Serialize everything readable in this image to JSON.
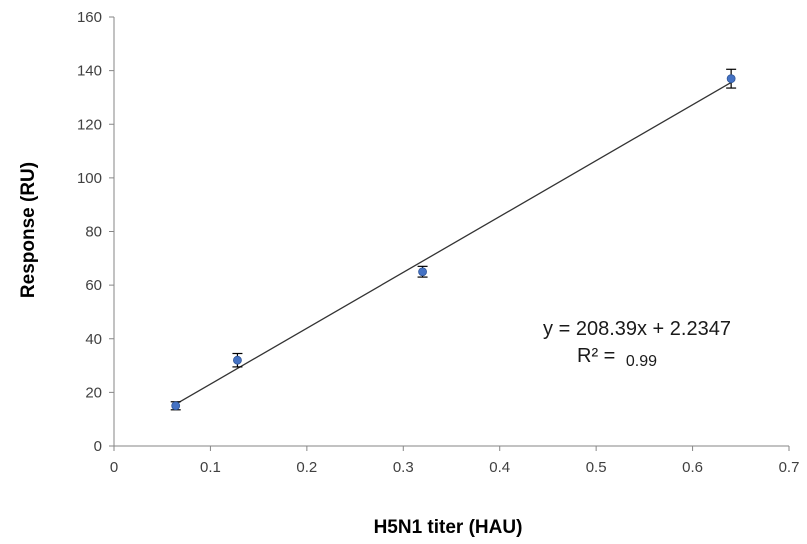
{
  "chart_data": {
    "type": "scatter",
    "title": "",
    "xlabel": "H5N1 titer (HAU)",
    "ylabel": "Response (RU)",
    "xlim": [
      0,
      0.7
    ],
    "ylim": [
      0,
      160
    ],
    "x_ticks": [
      "0",
      "0.1",
      "0.2",
      "0.3",
      "0.4",
      "0.5",
      "0.6",
      "0.7"
    ],
    "y_ticks": [
      "0",
      "20",
      "40",
      "60",
      "80",
      "100",
      "120",
      "140",
      "160"
    ],
    "grid": false,
    "series": [
      {
        "x": [
          0.064,
          0.128,
          0.32,
          0.64
        ],
        "y": [
          15,
          32,
          65,
          137
        ],
        "error": [
          1.5,
          2.5,
          2,
          3.5
        ],
        "color": "#4472C4"
      }
    ],
    "trendline": {
      "type": "linear",
      "slope": 208.39,
      "intercept": 2.2347,
      "x_range": [
        0.064,
        0.64
      ],
      "color": "#333333",
      "equation_label": "y = 208.39x + 2.2347",
      "r2_prefix": "R² =",
      "r2_value": "0.99"
    }
  }
}
